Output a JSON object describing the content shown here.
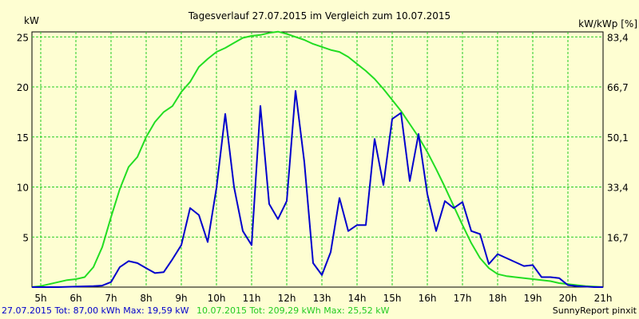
{
  "chart_data": {
    "type": "line",
    "title": "Tagesverlauf 27.07.2015 im Vergleich zum 10.07.2015",
    "ylabel_left": "kW",
    "ylabel_right": "kW/kWp [%]",
    "xlim": [
      4.75,
      21.0
    ],
    "ylim": [
      0,
      25.5
    ],
    "grid": true,
    "x_ticks": [
      {
        "x": 5,
        "label": "5h"
      },
      {
        "x": 6,
        "label": "6h"
      },
      {
        "x": 7,
        "label": "7h"
      },
      {
        "x": 8,
        "label": "8h"
      },
      {
        "x": 9,
        "label": "9h"
      },
      {
        "x": 10,
        "label": "10h"
      },
      {
        "x": 11,
        "label": "11h"
      },
      {
        "x": 12,
        "label": "12h"
      },
      {
        "x": 13,
        "label": "13h"
      },
      {
        "x": 14,
        "label": "14h"
      },
      {
        "x": 15,
        "label": "15h"
      },
      {
        "x": 16,
        "label": "16h"
      },
      {
        "x": 17,
        "label": "17h"
      },
      {
        "x": 18,
        "label": "18h"
      },
      {
        "x": 19,
        "label": "19h"
      },
      {
        "x": 20,
        "label": "20h"
      },
      {
        "x": 21,
        "label": "21h"
      }
    ],
    "y_ticks_left": [
      {
        "y": 5,
        "label": "5"
      },
      {
        "y": 10,
        "label": "10"
      },
      {
        "y": 15,
        "label": "15"
      },
      {
        "y": 20,
        "label": "20"
      },
      {
        "y": 25,
        "label": "25"
      }
    ],
    "y_ticks_right": [
      {
        "y": 5,
        "label": "16,7"
      },
      {
        "y": 10,
        "label": "33,4"
      },
      {
        "y": 15,
        "label": "50,1"
      },
      {
        "y": 20,
        "label": "66,7"
      },
      {
        "y": 25,
        "label": "83,4"
      }
    ],
    "series": [
      {
        "name": "27.07.2015",
        "color": "#0000cc",
        "legend_text": "27.07.2015 Tot: 87,00 kWh Max: 19,59 kW",
        "x": [
          4.75,
          5.0,
          5.5,
          6.0,
          6.5,
          6.75,
          7.0,
          7.25,
          7.5,
          7.75,
          8.0,
          8.25,
          8.5,
          8.75,
          9.0,
          9.25,
          9.5,
          9.75,
          10.0,
          10.25,
          10.5,
          10.75,
          11.0,
          11.25,
          11.5,
          11.75,
          12.0,
          12.25,
          12.5,
          12.75,
          13.0,
          13.25,
          13.5,
          13.75,
          14.0,
          14.25,
          14.5,
          14.75,
          15.0,
          15.25,
          15.5,
          15.75,
          16.0,
          16.25,
          16.5,
          16.75,
          17.0,
          17.25,
          17.5,
          17.75,
          18.0,
          18.25,
          18.5,
          18.75,
          19.0,
          19.25,
          19.5,
          19.75,
          20.0,
          20.25,
          20.5,
          20.75,
          21.0
        ],
        "values": [
          0.0,
          0.0,
          0.0,
          0.05,
          0.1,
          0.15,
          0.5,
          2.0,
          2.6,
          2.4,
          1.9,
          1.4,
          1.5,
          2.8,
          4.2,
          7.9,
          7.2,
          4.5,
          9.9,
          17.3,
          10.0,
          5.6,
          4.2,
          18.1,
          8.3,
          6.8,
          8.6,
          19.6,
          12.5,
          2.4,
          1.2,
          3.5,
          8.9,
          5.6,
          6.2,
          6.2,
          14.8,
          10.2,
          16.8,
          17.4,
          10.6,
          15.3,
          9.3,
          5.6,
          8.6,
          7.9,
          8.5,
          5.6,
          5.3,
          2.3,
          3.3,
          2.9,
          2.5,
          2.1,
          2.2,
          1.0,
          1.0,
          0.9,
          0.2,
          0.1,
          0.05,
          0.0,
          0.0
        ]
      },
      {
        "name": "10.07.2015",
        "color": "#22dd22",
        "legend_text": "10.07.2015 Tot: 209,29 kWh Max: 25,52 kW",
        "x": [
          4.75,
          5.0,
          5.25,
          5.5,
          5.75,
          6.0,
          6.25,
          6.5,
          6.75,
          7.0,
          7.25,
          7.5,
          7.75,
          8.0,
          8.25,
          8.5,
          8.75,
          9.0,
          9.25,
          9.5,
          9.75,
          10.0,
          10.25,
          10.5,
          10.75,
          11.0,
          11.25,
          11.5,
          11.75,
          12.0,
          12.25,
          12.5,
          12.75,
          13.0,
          13.25,
          13.5,
          13.75,
          14.0,
          14.25,
          14.5,
          14.75,
          15.0,
          15.25,
          15.5,
          15.75,
          16.0,
          16.25,
          16.5,
          16.75,
          17.0,
          17.25,
          17.5,
          17.75,
          18.0,
          18.25,
          18.5,
          18.75,
          19.0,
          19.25,
          19.5,
          19.75,
          20.0,
          20.25,
          20.5,
          20.75,
          21.0
        ],
        "values": [
          0.0,
          0.1,
          0.3,
          0.5,
          0.7,
          0.8,
          1.0,
          2.0,
          4.0,
          7.0,
          9.8,
          12.0,
          13.0,
          15.0,
          16.5,
          17.5,
          18.1,
          19.5,
          20.5,
          22.0,
          22.8,
          23.5,
          23.9,
          24.4,
          24.9,
          25.1,
          25.2,
          25.4,
          25.52,
          25.3,
          25.0,
          24.7,
          24.3,
          24.0,
          23.7,
          23.5,
          23.0,
          22.3,
          21.6,
          20.8,
          19.8,
          18.7,
          17.6,
          16.3,
          15.0,
          13.5,
          11.8,
          10.0,
          8.1,
          6.2,
          4.4,
          2.9,
          1.9,
          1.3,
          1.1,
          1.0,
          0.9,
          0.8,
          0.7,
          0.6,
          0.4,
          0.3,
          0.2,
          0.1,
          0.05,
          0.0
        ]
      }
    ],
    "footer_brand": "SunnyReport pinxit"
  }
}
